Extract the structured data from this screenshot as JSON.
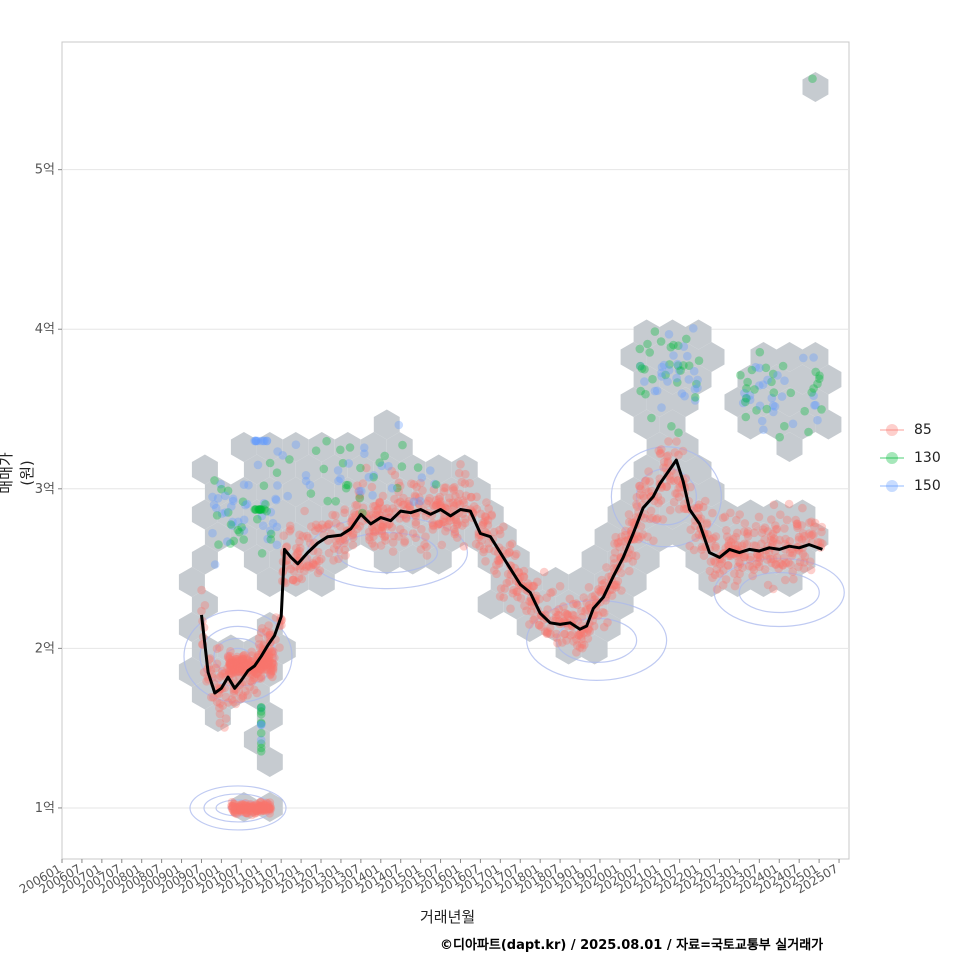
{
  "chart_data": {
    "type": "scatter",
    "xlabel": "거래년월",
    "ylabel": "매매가(원)",
    "x_ticks": [
      "200601",
      "200607",
      "200701",
      "200707",
      "200801",
      "200807",
      "200901",
      "200907",
      "201001",
      "201007",
      "201101",
      "201107",
      "201201",
      "201207",
      "201301",
      "201307",
      "201401",
      "201407",
      "201501",
      "201507",
      "201601",
      "201607",
      "201701",
      "201707",
      "201801",
      "201807",
      "201901",
      "201907",
      "202001",
      "202007",
      "202101",
      "202107",
      "202201",
      "202207",
      "202301",
      "202307",
      "202401",
      "202407",
      "202501",
      "202507"
    ],
    "x_range": [
      "2006-01",
      "2025-10"
    ],
    "y_ticks": [
      "1억",
      "2억",
      "3억",
      "4억",
      "5억"
    ],
    "y_tick_values": [
      1,
      2,
      3,
      4,
      5
    ],
    "y_unit": "억",
    "ylim": [
      0.68,
      5.8
    ],
    "grid": "horizontal",
    "legend_position": "right",
    "series": [
      {
        "name": "85",
        "color": "#F8766D"
      },
      {
        "name": "130",
        "color": "#00BA38"
      },
      {
        "name": "150",
        "color": "#619CFF"
      }
    ],
    "trend_line": {
      "color": "#000000",
      "points": [
        [
          "2009-07",
          2.21
        ],
        [
          "2009-09",
          1.85
        ],
        [
          "2009-11",
          1.72
        ],
        [
          "2010-01",
          1.75
        ],
        [
          "2010-03",
          1.82
        ],
        [
          "2010-05",
          1.75
        ],
        [
          "2010-07",
          1.8
        ],
        [
          "2010-09",
          1.86
        ],
        [
          "2010-11",
          1.89
        ],
        [
          "2011-01",
          1.95
        ],
        [
          "2011-03",
          2.02
        ],
        [
          "2011-05",
          2.08
        ],
        [
          "2011-07",
          2.2
        ],
        [
          "2011-08",
          2.62
        ],
        [
          "2011-10",
          2.57
        ],
        [
          "2011-12",
          2.53
        ],
        [
          "2012-03",
          2.6
        ],
        [
          "2012-06",
          2.66
        ],
        [
          "2012-09",
          2.7
        ],
        [
          "2013-01",
          2.71
        ],
        [
          "2013-04",
          2.75
        ],
        [
          "2013-07",
          2.84
        ],
        [
          "2013-10",
          2.78
        ],
        [
          "2014-01",
          2.82
        ],
        [
          "2014-04",
          2.8
        ],
        [
          "2014-07",
          2.86
        ],
        [
          "2014-10",
          2.85
        ],
        [
          "2015-01",
          2.87
        ],
        [
          "2015-04",
          2.84
        ],
        [
          "2015-07",
          2.87
        ],
        [
          "2015-10",
          2.83
        ],
        [
          "2016-01",
          2.87
        ],
        [
          "2016-04",
          2.86
        ],
        [
          "2016-07",
          2.72
        ],
        [
          "2016-10",
          2.7
        ],
        [
          "2017-01",
          2.6
        ],
        [
          "2017-04",
          2.5
        ],
        [
          "2017-07",
          2.4
        ],
        [
          "2017-10",
          2.35
        ],
        [
          "2018-01",
          2.22
        ],
        [
          "2018-04",
          2.16
        ],
        [
          "2018-07",
          2.15
        ],
        [
          "2018-10",
          2.16
        ],
        [
          "2019-01",
          2.12
        ],
        [
          "2019-03",
          2.14
        ],
        [
          "2019-05",
          2.25
        ],
        [
          "2019-08",
          2.32
        ],
        [
          "2019-11",
          2.45
        ],
        [
          "2020-02",
          2.57
        ],
        [
          "2020-05",
          2.72
        ],
        [
          "2020-08",
          2.88
        ],
        [
          "2020-11",
          2.95
        ],
        [
          "2021-01",
          3.03
        ],
        [
          "2021-04",
          3.12
        ],
        [
          "2021-06",
          3.18
        ],
        [
          "2021-08",
          3.05
        ],
        [
          "2021-10",
          2.87
        ],
        [
          "2022-01",
          2.78
        ],
        [
          "2022-04",
          2.6
        ],
        [
          "2022-07",
          2.57
        ],
        [
          "2022-10",
          2.62
        ],
        [
          "2023-01",
          2.6
        ],
        [
          "2023-04",
          2.62
        ],
        [
          "2023-07",
          2.61
        ],
        [
          "2023-10",
          2.63
        ],
        [
          "2024-01",
          2.62
        ],
        [
          "2024-04",
          2.64
        ],
        [
          "2024-07",
          2.63
        ],
        [
          "2024-10",
          2.65
        ],
        [
          "2025-02",
          2.62
        ]
      ]
    }
  },
  "caption": "©디아파트(dapt.kr) / 2025.08.01 / 자료=국토교통부 실거래가"
}
